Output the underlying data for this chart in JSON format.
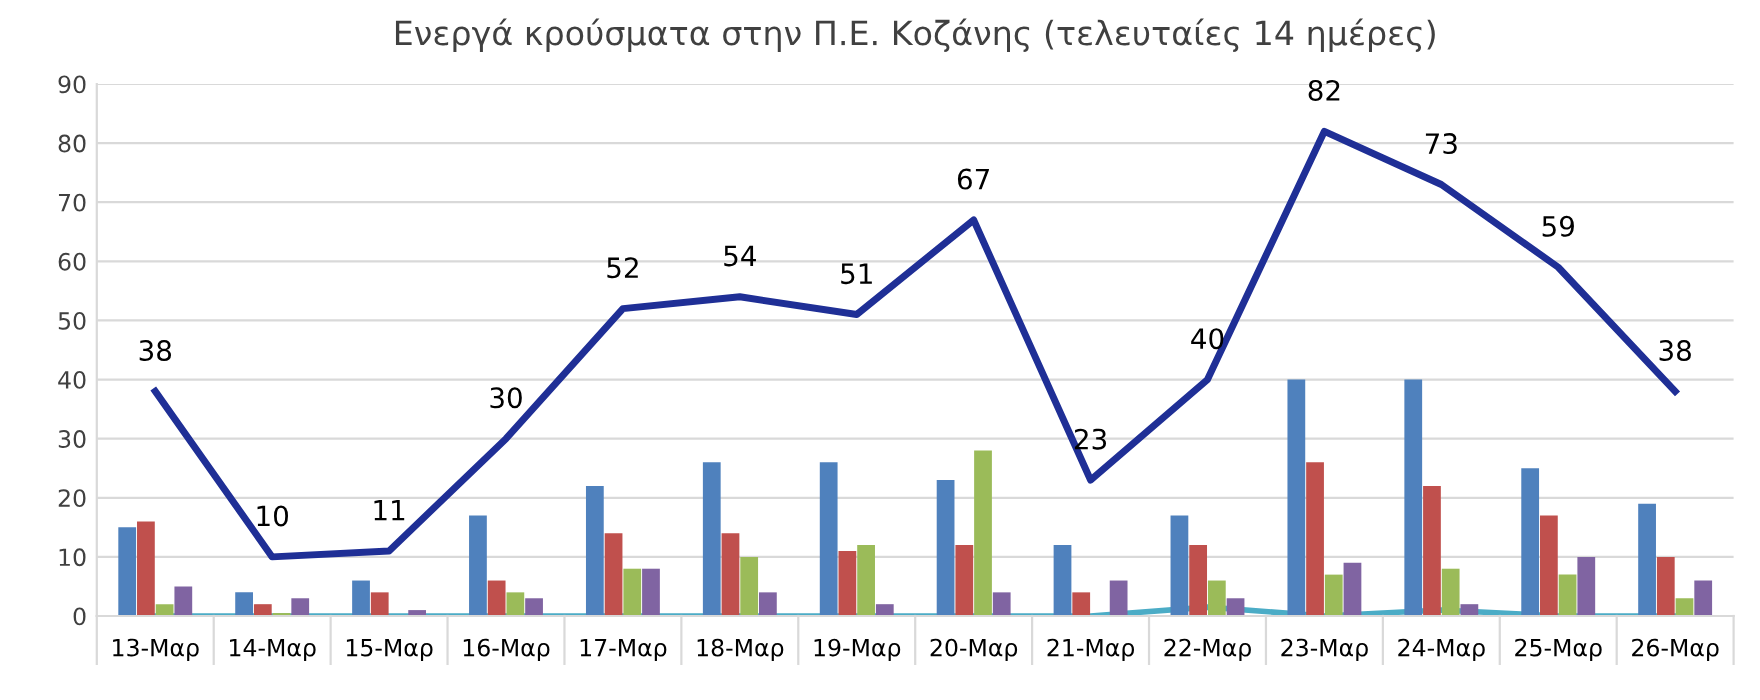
{
  "chart_data": {
    "type": "bar",
    "title": "Ενεργά κρούσματα στην Π.Ε. Κοζάνης (τελευταίες 14 ημέρες)",
    "categories": [
      "13-Μαρ",
      "14-Μαρ",
      "15-Μαρ",
      "16-Μαρ",
      "17-Μαρ",
      "18-Μαρ",
      "19-Μαρ",
      "20-Μαρ",
      "21-Μαρ",
      "22-Μαρ",
      "23-Μαρ",
      "24-Μαρ",
      "25-Μαρ",
      "26-Μαρ"
    ],
    "series": [
      {
        "color": "#4f81bd",
        "values": [
          15,
          4,
          6,
          17,
          22,
          26,
          26,
          23,
          12,
          17,
          40,
          40,
          25,
          19
        ]
      },
      {
        "color": "#c0504d",
        "values": [
          16,
          2,
          4,
          6,
          14,
          14,
          11,
          12,
          4,
          12,
          26,
          22,
          17,
          10
        ]
      },
      {
        "color": "#9bbb59",
        "values": [
          2,
          0.5,
          0,
          4,
          8,
          10,
          12,
          28,
          0,
          6,
          7,
          8,
          7,
          3
        ]
      },
      {
        "color": "#8064a2",
        "values": [
          5,
          3,
          1,
          3,
          8,
          4,
          2,
          4,
          6,
          3,
          9,
          2,
          10,
          6
        ]
      },
      {
        "type": "line",
        "color": "#4bacc6",
        "values": [
          0,
          0,
          0,
          0,
          0,
          0,
          0,
          0,
          0,
          1.5,
          0,
          1,
          0,
          0
        ]
      },
      {
        "type": "line",
        "color": "#1f2f96",
        "values": [
          38,
          10,
          11,
          30,
          52,
          54,
          51,
          67,
          23,
          40,
          82,
          73,
          59,
          38
        ],
        "value_labels": [
          "38",
          "10",
          "11",
          "30",
          "52",
          "54",
          "51",
          "67",
          "23",
          "40",
          "82",
          "73",
          "59",
          "38"
        ]
      }
    ],
    "ylim": [
      0,
      90
    ],
    "yticks": [
      0,
      10,
      20,
      30,
      40,
      50,
      60,
      70,
      80,
      90
    ],
    "grid": "y",
    "legend": false
  }
}
